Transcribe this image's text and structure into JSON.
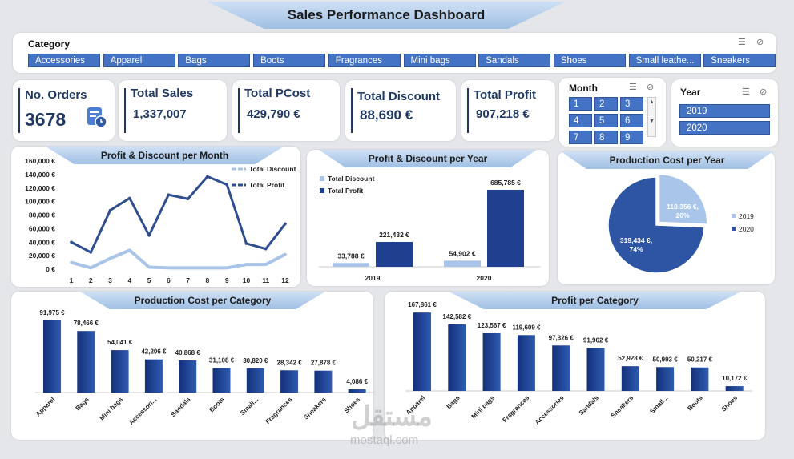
{
  "title": "Sales Performance Dashboard",
  "category_slicer": {
    "title": "Category",
    "items": [
      "Accessories",
      "Apparel",
      "Bags",
      "Boots",
      "Fragrances",
      "Mini bags",
      "Sandals",
      "Shoes",
      "Small leathe...",
      "Sneakers"
    ]
  },
  "kpis": {
    "orders": {
      "label": "No. Orders",
      "value": "3678"
    },
    "sales": {
      "label": "Total Sales",
      "value": "1,337,007"
    },
    "pcost": {
      "label": "Total PCost",
      "value": "429,790 €"
    },
    "discount": {
      "label": "Total Discount",
      "value": "88,690 €"
    },
    "profit": {
      "label": "Total Profit",
      "value": "907,218 €"
    }
  },
  "month_slicer": {
    "title": "Month",
    "items": [
      "1",
      "2",
      "3",
      "4",
      "5",
      "6",
      "7",
      "8",
      "9"
    ]
  },
  "year_slicer": {
    "title": "Year",
    "items": [
      "2019",
      "2020"
    ]
  },
  "watermark": {
    "arabic": "مستقل",
    "latin": "mostaql.com"
  },
  "colors": {
    "dark_blue": "#1f3f8f",
    "light_blue": "#a9c4e8",
    "pie_dark": "#2e55a3",
    "pie_light": "#a9c6ea"
  },
  "chart_data": [
    {
      "id": "profit_discount_month",
      "type": "line",
      "title": "Profit & Discount per Month",
      "x": [
        1,
        2,
        3,
        4,
        5,
        6,
        7,
        8,
        9,
        10,
        11,
        12
      ],
      "yticks": [
        "0 €",
        "20,000 €",
        "40,000 €",
        "60,000 €",
        "80,000 €",
        "100,000 €",
        "120,000 €",
        "140,000 €",
        "160,000 €"
      ],
      "ylim": [
        0,
        160000
      ],
      "series": [
        {
          "name": "Total Discount",
          "values": [
            10000,
            2000,
            16000,
            28000,
            3000,
            2000,
            2000,
            2000,
            2000,
            7000,
            7000,
            22000
          ]
        },
        {
          "name": "Total Profit",
          "values": [
            40000,
            25000,
            87000,
            105000,
            50000,
            110000,
            104000,
            137000,
            125000,
            38000,
            30000,
            67000
          ]
        }
      ],
      "legend": "top-right"
    },
    {
      "id": "profit_discount_year",
      "type": "bar",
      "title": "Profit & Discount per Year",
      "categories": [
        "2019",
        "2020"
      ],
      "series": [
        {
          "name": "Total Discount",
          "values": [
            33788,
            54902
          ],
          "labels": [
            "33,788 €",
            "54,902 €"
          ]
        },
        {
          "name": "Total Profit",
          "values": [
            221432,
            685785
          ],
          "labels": [
            "221,432 €",
            "685,785 €"
          ]
        }
      ],
      "ylim": [
        0,
        700000
      ],
      "legend": "top-left"
    },
    {
      "id": "pcost_year",
      "type": "pie",
      "title": "Production Cost per Year",
      "categories": [
        "2019",
        "2020"
      ],
      "values": [
        110356,
        319434
      ],
      "labels": [
        [
          "110,356 €,",
          "26%"
        ],
        [
          "319,434 €,",
          "74%"
        ]
      ],
      "legend": "right"
    },
    {
      "id": "pcost_category",
      "type": "bar",
      "title": "Production Cost per Category",
      "categories": [
        "Apparel",
        "Bags",
        "Mini bags",
        "Accessori...",
        "Sandals",
        "Boots",
        "Small...",
        "Fragrances",
        "Sneakers",
        "Shoes"
      ],
      "values": [
        91975,
        78466,
        54041,
        42206,
        40868,
        31108,
        30820,
        28342,
        27878,
        4086
      ],
      "labels": [
        "91,975 €",
        "78,466 €",
        "54,041 €",
        "42,206 €",
        "40,868 €",
        "31,108 €",
        "30,820 €",
        "28,342 €",
        "27,878 €",
        "4,086 €"
      ],
      "ylim": [
        0,
        95000
      ]
    },
    {
      "id": "profit_category",
      "type": "bar",
      "title": "Profit per Category",
      "categories": [
        "Apparel",
        "Bags",
        "Mini bags",
        "Fragrances",
        "Accessories",
        "Sandals",
        "Sneakers",
        "Small...",
        "Boots",
        "Shoes"
      ],
      "values": [
        167861,
        142582,
        123567,
        119609,
        97326,
        91962,
        52928,
        50993,
        50217,
        10172
      ],
      "labels": [
        "167,861 €",
        "142,582 €",
        "123,567 €",
        "119,609 €",
        "97,326 €",
        "91,962 €",
        "52,928 €",
        "50,993 €",
        "50,217 €",
        "10,172 €"
      ],
      "ylim": [
        0,
        175000
      ]
    }
  ]
}
